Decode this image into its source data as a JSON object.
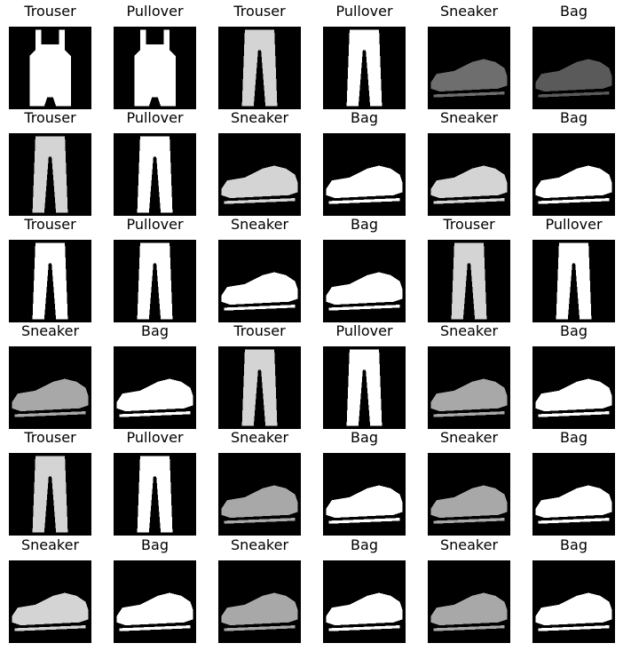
{
  "figure": {
    "background": "#ffffff",
    "image_background": "#000000",
    "rows": [
      [
        "Trouser",
        "Pullover",
        "Trouser",
        "Pullover",
        "Sneaker",
        "Bag"
      ],
      [
        "Trouser",
        "Pullover",
        "Sneaker",
        "Bag",
        "Sneaker",
        "Bag"
      ],
      [
        "Trouser",
        "Pullover",
        "Sneaker",
        "Bag",
        "Trouser",
        "Pullover"
      ],
      [
        "Sneaker",
        "Bag",
        "Trouser",
        "Pullover",
        "Sneaker",
        "Bag"
      ],
      [
        "Trouser",
        "Pullover",
        "Sneaker",
        "Bag",
        "Sneaker",
        "Bag"
      ],
      [
        "Sneaker",
        "Bag",
        "Sneaker",
        "Bag",
        "Sneaker",
        "Bag"
      ]
    ],
    "images": [
      [
        "overalls",
        "overalls-white",
        "trouser-light",
        "trouser-white",
        "sneaker-dark",
        "sneaker-faint"
      ],
      [
        "trouser-light",
        "trouser-white",
        "sneaker-light",
        "sneaker-white",
        "sneaker-light",
        "sneaker-white"
      ],
      [
        "trouser-white",
        "trouser-white",
        "sneaker-white",
        "sneaker-white",
        "trouser-light",
        "trouser-white"
      ],
      [
        "sneaker-gray",
        "sneaker-white",
        "trouser-light",
        "trouser-white",
        "sneaker-gray",
        "sneaker-white"
      ],
      [
        "trouser-light",
        "trouser-white",
        "sneaker-gray",
        "sneaker-white",
        "sneaker-gray",
        "sneaker-white"
      ],
      [
        "sneaker-light",
        "sneaker-white",
        "sneaker-gray",
        "sneaker-white",
        "sneaker-gray",
        "sneaker-white"
      ]
    ]
  }
}
